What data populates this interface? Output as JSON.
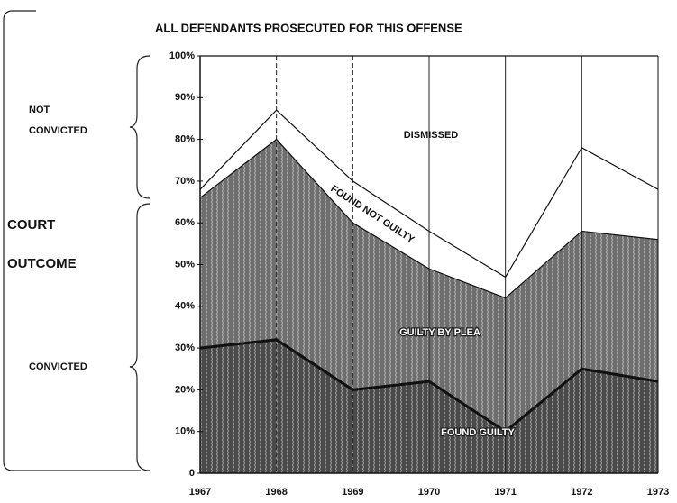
{
  "chart_data": {
    "type": "stacked_area",
    "title": "ALL DEFENDANTS PROSECUTED FOR THIS OFFENSE",
    "y_label": [
      "COURT",
      "OUTCOME"
    ],
    "group_labels": [
      [
        "NOT",
        "CONVICTED"
      ],
      [
        "CONVICTED"
      ]
    ],
    "categories": [
      "1967",
      "1968",
      "1969",
      "1970",
      "1971",
      "1972",
      "1973"
    ],
    "series": [
      {
        "name": "FOUND GUILTY",
        "color": "#4a4a4a",
        "values": [
          30,
          32,
          20,
          22,
          10,
          25,
          22
        ]
      },
      {
        "name": "GUILTY BY PLEA",
        "color": "#6e6e6e",
        "values": [
          36,
          48,
          40,
          27,
          32,
          33,
          34
        ]
      },
      {
        "name": "FOUND NOT GUILTY",
        "color": "#ffffff",
        "values": [
          2,
          7,
          10,
          9,
          5,
          20,
          12
        ]
      },
      {
        "name": "DISMISSED",
        "color": "#ffffff",
        "values": [
          32,
          13,
          30,
          42,
          53,
          22,
          32
        ]
      }
    ],
    "ylim": [
      0,
      100
    ],
    "yticks": [
      0,
      {
        "value": 10,
        "label": "10%"
      },
      {
        "value": 20,
        "label": "20%"
      },
      {
        "value": 30,
        "label": "30%"
      },
      {
        "value": 40,
        "label": "40%"
      },
      {
        "value": 50,
        "label": "50%"
      },
      {
        "value": 60,
        "label": "60%"
      },
      {
        "value": 70,
        "label": "70%"
      },
      {
        "value": 80,
        "label": "80%"
      },
      {
        "value": 90,
        "label": "90%"
      },
      {
        "value": 100,
        "label": "100%"
      }
    ]
  }
}
